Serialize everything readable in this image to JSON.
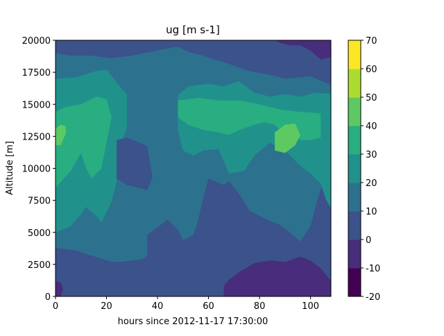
{
  "chart_data": {
    "type": "heatmap",
    "subtype": "filled-contour",
    "title": "ug [m s-1]",
    "xlabel": "hours since 2012-11-17 17:30:00",
    "ylabel": "Altitude [m]",
    "xlim": [
      0,
      108
    ],
    "ylim": [
      0,
      20000
    ],
    "x_ticks": [
      0,
      20,
      40,
      60,
      80,
      100
    ],
    "y_ticks": [
      0,
      2500,
      5000,
      7500,
      10000,
      12500,
      15000,
      17500,
      20000
    ],
    "colorbar": {
      "levels": [
        -20,
        -10,
        0,
        10,
        20,
        30,
        40,
        50,
        60,
        70
      ],
      "colors": [
        "#440154",
        "#472d7b",
        "#3b528b",
        "#2c728e",
        "#21918c",
        "#28ae80",
        "#5ec962",
        "#addc30",
        "#fde725"
      ],
      "tick_labels": [
        "-20",
        "-10",
        "0",
        "10",
        "20",
        "30",
        "40",
        "50",
        "60",
        "70"
      ]
    },
    "regions": [
      {
        "level": "0 to 10",
        "points": [
          [
            0,
            0
          ],
          [
            108,
            0
          ],
          [
            108,
            20000
          ],
          [
            0,
            20000
          ]
        ]
      },
      {
        "level": "10 to 20",
        "points": [
          [
            0,
            3800
          ],
          [
            8,
            3600
          ],
          [
            14,
            3200
          ],
          [
            22,
            2700
          ],
          [
            26,
            2700
          ],
          [
            30,
            2800
          ],
          [
            34,
            2900
          ],
          [
            36,
            3200
          ],
          [
            36,
            4800
          ],
          [
            40,
            5400
          ],
          [
            44,
            6000
          ],
          [
            48,
            5200
          ],
          [
            50,
            4400
          ],
          [
            54,
            4800
          ],
          [
            56,
            6000
          ],
          [
            58,
            7800
          ],
          [
            60,
            9200
          ],
          [
            66,
            8700
          ],
          [
            68,
            9000
          ],
          [
            72,
            8000
          ],
          [
            76,
            6700
          ],
          [
            80,
            6300
          ],
          [
            84,
            5900
          ],
          [
            88,
            5600
          ],
          [
            92,
            5000
          ],
          [
            96,
            4300
          ],
          [
            100,
            5500
          ],
          [
            102,
            7000
          ],
          [
            104,
            8400
          ],
          [
            108,
            9000
          ],
          [
            108,
            16500
          ],
          [
            100,
            17200
          ],
          [
            90,
            17000
          ],
          [
            84,
            17300
          ],
          [
            76,
            17600
          ],
          [
            70,
            18000
          ],
          [
            66,
            18300
          ],
          [
            62,
            18500
          ],
          [
            58,
            18800
          ],
          [
            52,
            19100
          ],
          [
            48,
            19500
          ],
          [
            40,
            19200
          ],
          [
            30,
            18800
          ],
          [
            22,
            18600
          ],
          [
            14,
            18800
          ],
          [
            6,
            18800
          ],
          [
            0,
            19000
          ]
        ]
      },
      {
        "level": "20 to 30",
        "points": [
          [
            0,
            5000
          ],
          [
            6,
            5500
          ],
          [
            10,
            6400
          ],
          [
            12,
            7000
          ],
          [
            14,
            6600
          ],
          [
            16,
            6300
          ],
          [
            18,
            5800
          ],
          [
            20,
            6600
          ],
          [
            22,
            7400
          ],
          [
            24,
            9000
          ],
          [
            26,
            12000
          ],
          [
            28,
            13200
          ],
          [
            28,
            15800
          ],
          [
            26,
            16200
          ],
          [
            20,
            17700
          ],
          [
            16,
            17600
          ],
          [
            8,
            17100
          ],
          [
            0,
            17000
          ]
        ]
      },
      {
        "level": "20 to 30",
        "points": [
          [
            48,
            15700
          ],
          [
            52,
            16400
          ],
          [
            60,
            16600
          ],
          [
            66,
            16400
          ],
          [
            72,
            16800
          ],
          [
            78,
            15900
          ],
          [
            84,
            15600
          ],
          [
            90,
            15800
          ],
          [
            96,
            15600
          ],
          [
            102,
            15900
          ],
          [
            108,
            15800
          ],
          [
            108,
            6900
          ],
          [
            106,
            7600
          ],
          [
            104,
            8800
          ],
          [
            100,
            9600
          ],
          [
            96,
            10200
          ],
          [
            90,
            11400
          ],
          [
            84,
            12000
          ],
          [
            78,
            11000
          ],
          [
            74,
            9800
          ],
          [
            68,
            9600
          ],
          [
            64,
            11500
          ],
          [
            58,
            11400
          ],
          [
            54,
            11000
          ],
          [
            50,
            11400
          ],
          [
            48,
            13000
          ]
        ]
      },
      {
        "level": "30 to 40",
        "points": [
          [
            0,
            8500
          ],
          [
            6,
            9800
          ],
          [
            8,
            10500
          ],
          [
            10,
            11200
          ],
          [
            12,
            10000
          ],
          [
            14,
            9200
          ],
          [
            18,
            10000
          ],
          [
            20,
            12000
          ],
          [
            22,
            14000
          ],
          [
            20,
            15400
          ],
          [
            16,
            15600
          ],
          [
            10,
            15000
          ],
          [
            4,
            14800
          ],
          [
            0,
            14400
          ]
        ]
      },
      {
        "level": "30 to 40",
        "points": [
          [
            48,
            14000
          ],
          [
            52,
            13400
          ],
          [
            58,
            13000
          ],
          [
            64,
            12800
          ],
          [
            68,
            12600
          ],
          [
            72,
            13000
          ],
          [
            78,
            13400
          ],
          [
            82,
            13600
          ],
          [
            86,
            13400
          ],
          [
            88,
            13000
          ],
          [
            92,
            12800
          ],
          [
            96,
            12200
          ],
          [
            100,
            12200
          ],
          [
            104,
            12400
          ],
          [
            104,
            14300
          ],
          [
            96,
            14400
          ],
          [
            88,
            14600
          ],
          [
            80,
            15000
          ],
          [
            72,
            15300
          ],
          [
            64,
            15300
          ],
          [
            56,
            15500
          ],
          [
            48,
            15300
          ]
        ]
      },
      {
        "level": "40 to 50",
        "points": [
          [
            0,
            11800
          ],
          [
            2,
            11800
          ],
          [
            4,
            12700
          ],
          [
            4,
            13300
          ],
          [
            2,
            13400
          ],
          [
            0,
            13100
          ]
        ]
      },
      {
        "level": "40 to 50",
        "points": [
          [
            86,
            11400
          ],
          [
            90,
            11200
          ],
          [
            94,
            11800
          ],
          [
            96,
            12600
          ],
          [
            94,
            13500
          ],
          [
            90,
            13400
          ],
          [
            86,
            12800
          ]
        ]
      },
      {
        "level": "-10 to 0",
        "points": [
          [
            66,
            0
          ],
          [
            108,
            0
          ],
          [
            108,
            1200
          ],
          [
            104,
            2200
          ],
          [
            100,
            2800
          ],
          [
            96,
            3100
          ],
          [
            90,
            2700
          ],
          [
            84,
            2800
          ],
          [
            78,
            2600
          ],
          [
            72,
            1900
          ],
          [
            68,
            1300
          ],
          [
            66,
            800
          ]
        ]
      },
      {
        "level": "-10 to 0",
        "points": [
          [
            86,
            20000
          ],
          [
            108,
            20000
          ],
          [
            108,
            18700
          ],
          [
            104,
            18500
          ],
          [
            100,
            19200
          ],
          [
            96,
            19600
          ],
          [
            92,
            19600
          ],
          [
            88,
            19800
          ]
        ]
      },
      {
        "level": "-10 to 0",
        "points": [
          [
            0,
            0
          ],
          [
            2,
            0
          ],
          [
            3,
            600
          ],
          [
            2,
            1100
          ],
          [
            0,
            1200
          ]
        ]
      },
      {
        "level": "0 to 10",
        "points": [
          [
            24,
            12200
          ],
          [
            28,
            12400
          ],
          [
            32,
            12100
          ],
          [
            36,
            11700
          ],
          [
            38,
            9300
          ],
          [
            36,
            8300
          ],
          [
            32,
            8500
          ],
          [
            28,
            8700
          ],
          [
            24,
            9200
          ]
        ]
      }
    ]
  }
}
